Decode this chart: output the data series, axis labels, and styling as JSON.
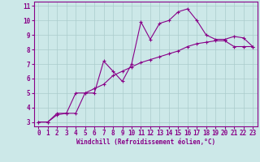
{
  "xlabel": "Windchill (Refroidissement éolien,°C)",
  "background_color": "#cce8e8",
  "line_color": "#880088",
  "grid_color": "#aacccc",
  "xlim": [
    -0.5,
    23.5
  ],
  "ylim": [
    2.7,
    11.3
  ],
  "xticks": [
    0,
    1,
    2,
    3,
    4,
    5,
    6,
    7,
    8,
    9,
    10,
    11,
    12,
    13,
    14,
    15,
    16,
    17,
    18,
    19,
    20,
    21,
    22,
    23
  ],
  "yticks": [
    3,
    4,
    5,
    6,
    7,
    8,
    9,
    10,
    11
  ],
  "line1_x": [
    0,
    1,
    2,
    3,
    4,
    5,
    6,
    7,
    8,
    9,
    10,
    11,
    12,
    13,
    14,
    15,
    16,
    17,
    18,
    19,
    20,
    21,
    22,
    23
  ],
  "line1_y": [
    3.0,
    3.0,
    3.6,
    3.6,
    5.0,
    5.0,
    5.0,
    7.2,
    6.5,
    5.8,
    7.0,
    9.9,
    8.7,
    9.8,
    10.0,
    10.6,
    10.8,
    10.0,
    9.0,
    8.7,
    8.7,
    8.9,
    8.8,
    8.2
  ],
  "line2_x": [
    0,
    1,
    2,
    3,
    4,
    5,
    6,
    7,
    8,
    9,
    10,
    11,
    12,
    13,
    14,
    15,
    16,
    17,
    18,
    19,
    20,
    21,
    22,
    23
  ],
  "line2_y": [
    3.0,
    3.0,
    3.5,
    3.6,
    3.6,
    5.0,
    5.3,
    5.6,
    6.2,
    6.5,
    6.8,
    7.1,
    7.3,
    7.5,
    7.7,
    7.9,
    8.2,
    8.4,
    8.5,
    8.6,
    8.6,
    8.2,
    8.2,
    8.2
  ],
  "tick_fontsize": 5.5,
  "xlabel_fontsize": 5.5
}
